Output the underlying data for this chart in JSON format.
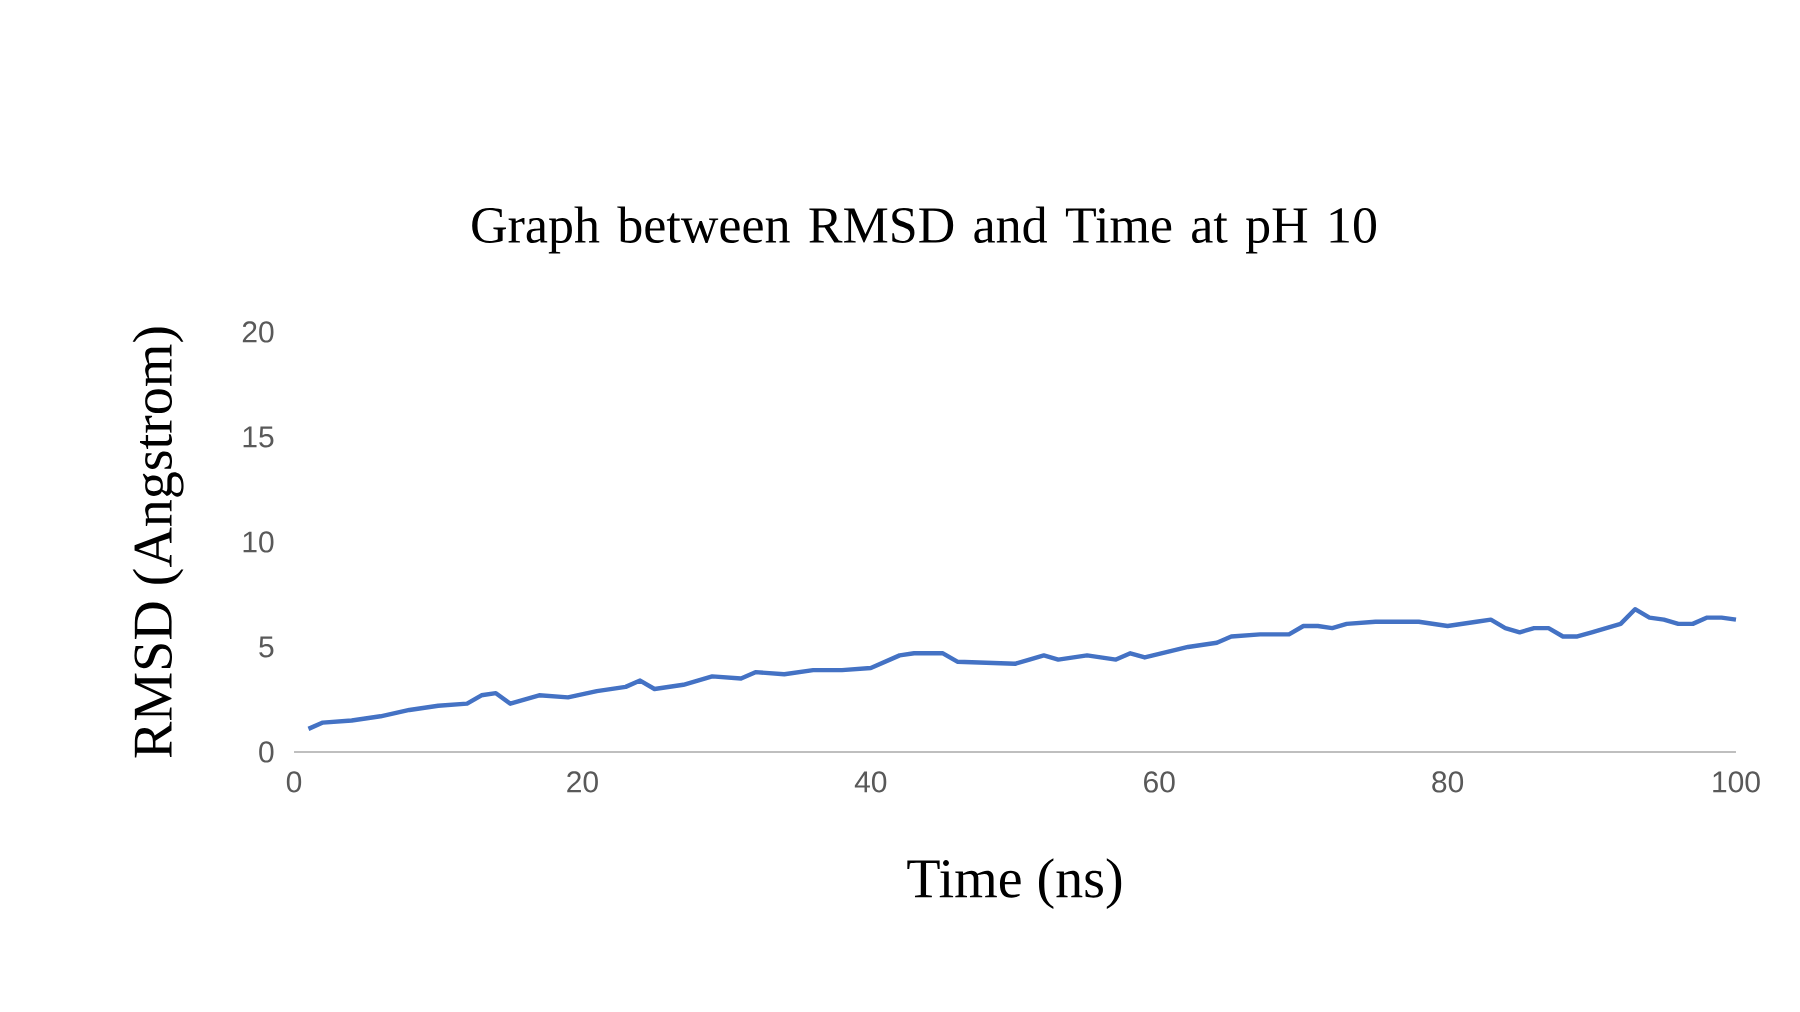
{
  "chart_data": {
    "type": "line",
    "title": "Graph between RMSD and Time at pH 10",
    "xlabel": "Time (ns)",
    "ylabel": "RMSD (Angstrom)",
    "x": [
      1,
      2,
      4,
      6,
      8,
      10,
      12,
      13,
      14,
      15,
      17,
      19,
      21,
      23,
      24,
      25,
      27,
      29,
      31,
      32,
      34,
      36,
      38,
      40,
      41,
      42,
      43,
      45,
      46,
      50,
      51,
      52,
      53,
      55,
      57,
      58,
      59,
      62,
      64,
      65,
      67,
      69,
      70,
      71,
      72,
      73,
      75,
      78,
      80,
      82,
      83,
      84,
      85,
      86,
      87,
      88,
      89,
      90,
      92,
      93,
      94,
      95,
      96,
      97,
      98,
      99,
      100
    ],
    "series": [
      {
        "color": "#4472c4",
        "values": [
          1.1,
          1.4,
          1.5,
          1.7,
          2.0,
          2.2,
          2.3,
          2.7,
          2.8,
          2.3,
          2.7,
          2.6,
          2.9,
          3.1,
          3.4,
          3.0,
          3.2,
          3.6,
          3.5,
          3.8,
          3.7,
          3.9,
          3.9,
          4.0,
          4.3,
          4.6,
          4.7,
          4.7,
          4.3,
          4.2,
          4.4,
          4.6,
          4.4,
          4.6,
          4.4,
          4.7,
          4.5,
          5.0,
          5.2,
          5.5,
          5.6,
          5.6,
          6.0,
          6.0,
          5.9,
          6.1,
          6.2,
          6.2,
          6.0,
          6.2,
          6.3,
          5.9,
          5.7,
          5.9,
          5.9,
          5.5,
          5.5,
          5.7,
          6.1,
          6.8,
          6.4,
          6.3,
          6.1,
          6.1,
          6.4,
          6.4,
          6.3
        ]
      }
    ],
    "xlim": [
      0,
      100
    ],
    "xticks": [
      0,
      20,
      40,
      60,
      80,
      100
    ],
    "ylim": [
      0,
      20
    ],
    "yticks": [
      0,
      5,
      10,
      15,
      20
    ],
    "grid": false,
    "marker": "none",
    "line_style": "solid"
  }
}
